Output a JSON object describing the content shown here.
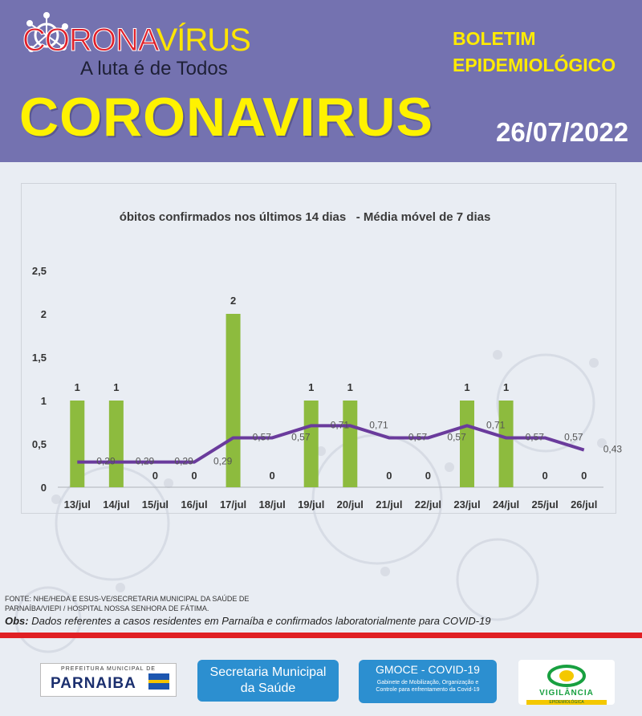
{
  "header": {
    "logo_red": "CORONA",
    "logo_yellow": "VÍRUS",
    "logo_tagline": "A luta é de Todos",
    "boletim": "BOLETIM\nEPIDEMIOLÓGICO",
    "big_title": "CORONAVIRUS",
    "date": "26/07/2022"
  },
  "colors": {
    "header_bg": "#7472b0",
    "title_yellow": "#fff200",
    "bar_green": "#8dbb3e",
    "line_purple": "#6a3b9c",
    "red_bar": "#e02024"
  },
  "chart_data": {
    "type": "bar",
    "title": "óbitos confirmados nos últimos 14 dias   - Média móvel de 7 dias",
    "categories": [
      "13/jul",
      "14/jul",
      "15/jul",
      "16/jul",
      "17/jul",
      "18/jul",
      "19/jul",
      "20/jul",
      "21/jul",
      "22/jul",
      "23/jul",
      "24/jul",
      "25/jul",
      "26/jul"
    ],
    "series": [
      {
        "values": [
          1,
          1,
          0,
          0,
          2,
          0,
          1,
          1,
          0,
          0,
          1,
          1,
          0,
          0
        ],
        "labels": [
          "1",
          "1",
          "0",
          "0",
          "2",
          "0",
          "1",
          "1",
          "0",
          "0",
          "1",
          "1",
          "0",
          "0"
        ]
      },
      {
        "values": [
          0.29,
          0.29,
          0.29,
          0.29,
          0.57,
          0.57,
          0.71,
          0.71,
          0.57,
          0.57,
          0.71,
          0.57,
          0.57,
          0.43
        ],
        "labels": [
          "0,29",
          "0,29",
          "0,29",
          "0,29",
          "0,57",
          "0,57",
          "0,71",
          "0,71",
          "0,57",
          "0,57",
          "0,71",
          "0,57",
          "0,57",
          "0,43"
        ]
      }
    ],
    "yticks": [
      "0",
      "0,5",
      "1",
      "1,5",
      "2",
      "2,5"
    ],
    "ylim": [
      0,
      2.5
    ],
    "grid": false
  },
  "footer": {
    "source": "FONTE: NHE/HEDA E ESUS-VE/SECRETARIA MUNICIPAL DA SAÚDE DE PARNAÍBA/VIEPI / HOSPITAL NOSSA SENHORA DE FÁTIMA.",
    "obs_label": "Obs:",
    "obs_text": " Dados referentes a casos residentes em Parnaíba e confirmados laboratorialmente para COVID-19",
    "pref_top": "PREFEITURA MUNICIPAL DE",
    "pref_name": "PARNAIBA",
    "secretaria": "Secretaria Municipal\nda Saúde",
    "gmoce_title": "GMOCE - COVID-19",
    "gmoce_sub": "Gabinete de Mobilização, Organização e\nControle para enfrentamento da Covid-19",
    "vig_title": "VIGILÂNCIA",
    "vig_sub": "EPIDEMIOLÓGICA"
  }
}
